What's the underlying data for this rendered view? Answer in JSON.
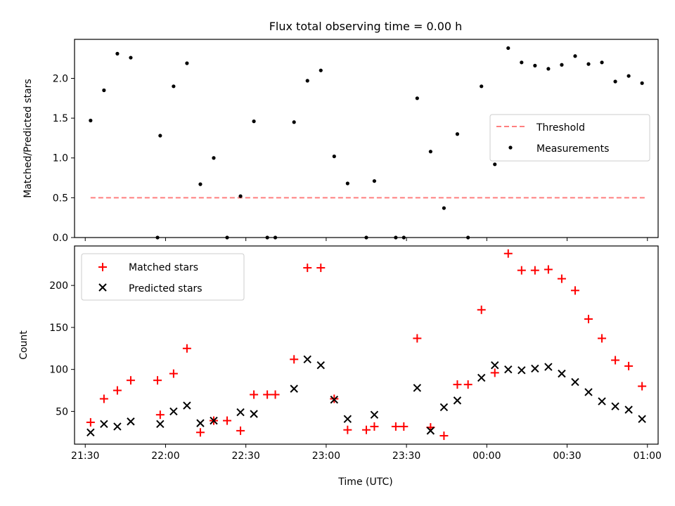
{
  "figure": {
    "title": "Flux total observing time = 0.00 h"
  },
  "colors": {
    "measurement": "#000000",
    "threshold": "#ff7f7f",
    "matched": "#ff0000",
    "predicted": "#000000"
  },
  "chart_data": [
    {
      "type": "scatter",
      "title": "Flux total observing time = 0.00 h",
      "xlabel": "",
      "ylabel": "Matched/Predicted stars",
      "x_tick_labels": [],
      "y_ticks": [
        0.0,
        0.5,
        1.0,
        1.5,
        2.0
      ],
      "y_tick_labels": [
        "0.0",
        "0.5",
        "1.0",
        "1.5",
        "2.0"
      ],
      "xlim": [
        "21:26",
        "01:04"
      ],
      "ylim": [
        0,
        2.49
      ],
      "legend": {
        "placement": "right",
        "entries": [
          "Threshold",
          "Measurements"
        ]
      },
      "threshold": {
        "name": "Threshold",
        "value": 0.5,
        "x_start": "21:32",
        "x_end": "01:00",
        "style": "dashed"
      },
      "series": [
        {
          "name": "Measurements",
          "marker": "dot",
          "points": [
            [
              "21:32",
              1.47
            ],
            [
              "21:37",
              1.85
            ],
            [
              "21:42",
              2.31
            ],
            [
              "21:47",
              2.26
            ],
            [
              "21:57",
              0.0
            ],
            [
              "21:58",
              1.28
            ],
            [
              "22:03",
              1.9
            ],
            [
              "22:08",
              2.19
            ],
            [
              "22:13",
              0.67
            ],
            [
              "22:18",
              1.0
            ],
            [
              "22:23",
              0.0
            ],
            [
              "22:28",
              0.52
            ],
            [
              "22:33",
              1.46
            ],
            [
              "22:38",
              0.0
            ],
            [
              "22:41",
              0.0
            ],
            [
              "22:48",
              1.45
            ],
            [
              "22:53",
              1.97
            ],
            [
              "22:58",
              2.1
            ],
            [
              "23:03",
              1.02
            ],
            [
              "23:08",
              0.68
            ],
            [
              "23:15",
              0.0
            ],
            [
              "23:18",
              0.71
            ],
            [
              "23:26",
              0.0
            ],
            [
              "23:29",
              0.0
            ],
            [
              "23:34",
              1.75
            ],
            [
              "23:39",
              1.08
            ],
            [
              "23:44",
              0.37
            ],
            [
              "23:49",
              1.3
            ],
            [
              "23:53",
              0.0
            ],
            [
              "23:58",
              1.9
            ],
            [
              "00:03",
              0.92
            ],
            [
              "00:08",
              2.38
            ],
            [
              "00:13",
              2.2
            ],
            [
              "00:18",
              2.16
            ],
            [
              "00:23",
              2.12
            ],
            [
              "00:28",
              2.17
            ],
            [
              "00:33",
              2.28
            ],
            [
              "00:38",
              2.18
            ],
            [
              "00:43",
              2.2
            ],
            [
              "00:48",
              1.96
            ],
            [
              "00:53",
              2.03
            ],
            [
              "00:58",
              1.94
            ]
          ]
        }
      ]
    },
    {
      "type": "scatter",
      "title": "",
      "xlabel": "Time (UTC)",
      "ylabel": "Count",
      "x_ticks": [
        "21:30",
        "22:00",
        "22:30",
        "23:00",
        "23:30",
        "00:00",
        "00:30",
        "01:00"
      ],
      "x_tick_labels": [
        "21:30",
        "22:00",
        "22:30",
        "23:00",
        "23:30",
        "00:00",
        "00:30",
        "01:00"
      ],
      "y_ticks": [
        50,
        100,
        150,
        200
      ],
      "y_tick_labels": [
        "50",
        "100",
        "150",
        "200"
      ],
      "xlim": [
        "21:26",
        "01:04"
      ],
      "ylim": [
        11,
        247
      ],
      "legend": {
        "placement": "top-left",
        "entries": [
          "Matched stars",
          "Predicted stars"
        ]
      },
      "series": [
        {
          "name": "Matched stars",
          "marker": "plus",
          "points": [
            [
              "21:32",
              37
            ],
            [
              "21:37",
              65
            ],
            [
              "21:42",
              75
            ],
            [
              "21:47",
              87
            ],
            [
              "21:57",
              87
            ],
            [
              "21:58",
              46
            ],
            [
              "22:03",
              95
            ],
            [
              "22:08",
              125
            ],
            [
              "22:13",
              25
            ],
            [
              "22:18",
              39
            ],
            [
              "22:23",
              39
            ],
            [
              "22:28",
              27
            ],
            [
              "22:33",
              70
            ],
            [
              "22:38",
              70
            ],
            [
              "22:41",
              70
            ],
            [
              "22:48",
              112
            ],
            [
              "22:53",
              221
            ],
            [
              "22:58",
              221
            ],
            [
              "23:03",
              65
            ],
            [
              "23:08",
              28
            ],
            [
              "23:15",
              28
            ],
            [
              "23:18",
              32
            ],
            [
              "23:26",
              32
            ],
            [
              "23:29",
              32
            ],
            [
              "23:34",
              137
            ],
            [
              "23:39",
              31
            ],
            [
              "23:44",
              21
            ],
            [
              "23:49",
              82
            ],
            [
              "23:53",
              82
            ],
            [
              "23:58",
              171
            ],
            [
              "00:03",
              96
            ],
            [
              "00:08",
              238
            ],
            [
              "00:13",
              218
            ],
            [
              "00:18",
              218
            ],
            [
              "00:23",
              219
            ],
            [
              "00:28",
              208
            ],
            [
              "00:33",
              194
            ],
            [
              "00:38",
              160
            ],
            [
              "00:43",
              137
            ],
            [
              "00:48",
              111
            ],
            [
              "00:53",
              104
            ],
            [
              "00:58",
              80
            ]
          ]
        },
        {
          "name": "Predicted stars",
          "marker": "x",
          "points": [
            [
              "21:32",
              25
            ],
            [
              "21:37",
              35
            ],
            [
              "21:42",
              32
            ],
            [
              "21:47",
              38
            ],
            [
              "21:58",
              35
            ],
            [
              "22:03",
              50
            ],
            [
              "22:08",
              57
            ],
            [
              "22:13",
              36
            ],
            [
              "22:18",
              39
            ],
            [
              "22:28",
              49
            ],
            [
              "22:33",
              47
            ],
            [
              "22:48",
              77
            ],
            [
              "22:53",
              112
            ],
            [
              "22:58",
              105
            ],
            [
              "23:03",
              64
            ],
            [
              "23:08",
              41
            ],
            [
              "23:18",
              46
            ],
            [
              "23:34",
              78
            ],
            [
              "23:39",
              27
            ],
            [
              "23:44",
              55
            ],
            [
              "23:49",
              63
            ],
            [
              "23:58",
              90
            ],
            [
              "00:03",
              105
            ],
            [
              "00:08",
              100
            ],
            [
              "00:13",
              99
            ],
            [
              "00:18",
              101
            ],
            [
              "00:23",
              103
            ],
            [
              "00:28",
              95
            ],
            [
              "00:33",
              85
            ],
            [
              "00:38",
              73
            ],
            [
              "00:43",
              62
            ],
            [
              "00:48",
              56
            ],
            [
              "00:53",
              52
            ],
            [
              "00:58",
              41
            ]
          ]
        }
      ]
    }
  ]
}
